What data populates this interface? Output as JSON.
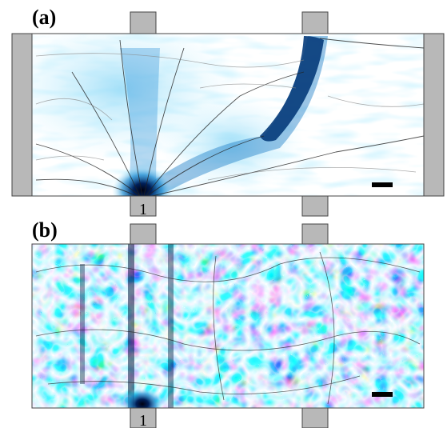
{
  "panels": [
    {
      "label": "(a)",
      "lead_label": "1"
    },
    {
      "label": "(b)",
      "lead_label": "1"
    }
  ]
}
